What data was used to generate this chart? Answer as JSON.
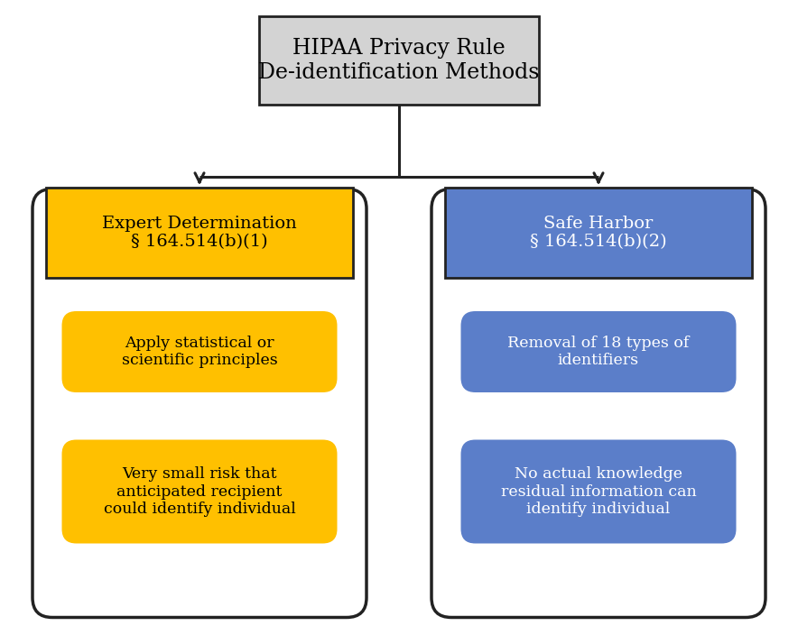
{
  "title_text": "HIPAA Privacy Rule\nDe-identification Methods",
  "title_box_color": "#d3d3d3",
  "title_box_edgecolor": "#222222",
  "title_text_color": "#000000",
  "left_header_text": "Expert Determination\n§ 164.514(b)(1)",
  "left_header_color": "#FFC000",
  "left_header_edgecolor": "#222222",
  "left_header_text_color": "#000000",
  "right_header_text": "Safe Harbor\n§ 164.514(b)(2)",
  "right_header_color": "#5B7EC9",
  "right_header_edgecolor": "#222222",
  "right_header_text_color": "#ffffff",
  "left_item1_text": "Apply statistical or\nscientific principles",
  "left_item2_text": "Very small risk that\nanticipated recipient\ncould identify individual",
  "left_item_color": "#FFC000",
  "left_item_text_color": "#000000",
  "right_item1_text": "Removal of 18 types of\nidentifiers",
  "right_item2_text": "No actual knowledge\nresidual information can\nidentify individual",
  "right_item_color": "#5B7EC9",
  "right_item_text_color": "#ffffff",
  "container_edgecolor": "#222222",
  "container_facecolor": "#ffffff",
  "background_color": "#ffffff",
  "line_color": "#222222",
  "fontsize_title": 17,
  "fontsize_header": 14,
  "fontsize_item": 12.5
}
